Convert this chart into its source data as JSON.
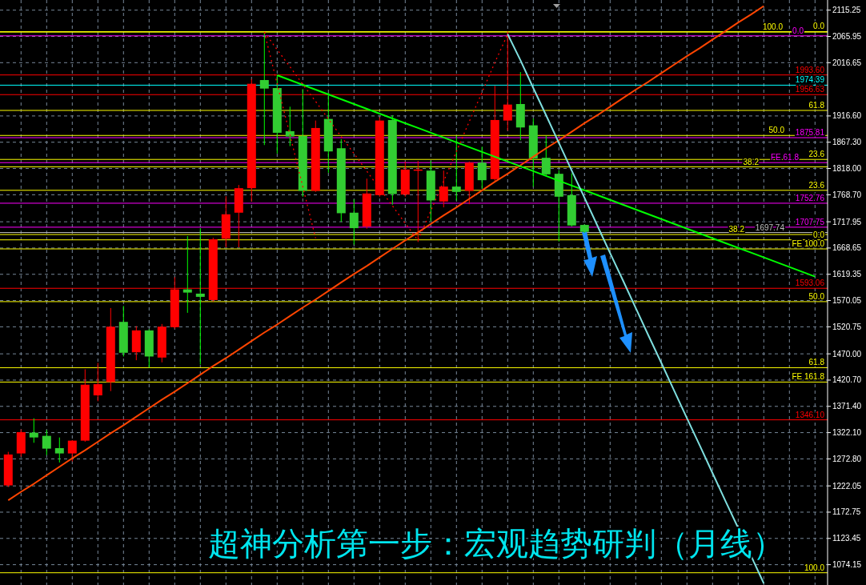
{
  "chart_data": {
    "type": "candlestick",
    "title": "超神分析第一步：宏观趋势研判（月线）",
    "categories": [
      null,
      null,
      null,
      null,
      null,
      null,
      null,
      null,
      null,
      null,
      null,
      null,
      null,
      null,
      null,
      null,
      null,
      null,
      null,
      null,
      null,
      null,
      null,
      null,
      null,
      null,
      null,
      null,
      null,
      null,
      null,
      null,
      null,
      null,
      null,
      null,
      null,
      null,
      null,
      null,
      null,
      null,
      null,
      null,
      null,
      null,
      null,
      null,
      null,
      null,
      null,
      null,
      null,
      null,
      null,
      null,
      null,
      null,
      null,
      null,
      null,
      null,
      null,
      null
    ],
    "ohlc": [
      [
        1223,
        1286,
        1220,
        1281
      ],
      [
        1283,
        1328,
        1277,
        1323
      ],
      [
        1322,
        1349,
        1303,
        1313
      ],
      [
        1316,
        1327,
        1280,
        1292
      ],
      [
        1293,
        1313,
        1266,
        1283
      ],
      [
        1283,
        1308,
        1268,
        1307
      ],
      [
        1307,
        1441,
        1305,
        1412
      ],
      [
        1392,
        1453,
        1381,
        1413
      ],
      [
        1417,
        1556,
        1400,
        1521
      ],
      [
        1530,
        1560,
        1465,
        1472
      ],
      [
        1473,
        1522,
        1458,
        1514
      ],
      [
        1514,
        1516,
        1444,
        1465
      ],
      [
        1463,
        1526,
        1454,
        1521
      ],
      [
        1520,
        1614,
        1517,
        1591
      ],
      [
        1591,
        1691,
        1547,
        1585
      ],
      [
        1583,
        1706,
        1450,
        1577
      ],
      [
        1571,
        1688,
        1568,
        1685
      ],
      [
        1686,
        1766,
        1670,
        1732
      ],
      [
        1735,
        1787,
        1670,
        1781
      ],
      [
        1781,
        1986,
        1756,
        1977
      ],
      [
        1984,
        2074,
        1862,
        1968
      ],
      [
        1969,
        1993,
        1846,
        1885
      ],
      [
        1888,
        1934,
        1860,
        1878
      ],
      [
        1879,
        1967,
        1765,
        1776
      ],
      [
        1776,
        1908,
        1774,
        1894
      ],
      [
        1911,
        1960,
        1810,
        1850
      ],
      [
        1856,
        1873,
        1718,
        1734
      ],
      [
        1735,
        1760,
        1675,
        1706
      ],
      [
        1709,
        1799,
        1705,
        1771
      ],
      [
        1768,
        1914,
        1765,
        1908
      ],
      [
        1909,
        1918,
        1750,
        1770
      ],
      [
        1769,
        1831,
        1765,
        1816
      ],
      [
        1814,
        1832,
        1680,
        1816
      ],
      [
        1814,
        1832,
        1719,
        1758
      ],
      [
        1756,
        1814,
        1745,
        1784
      ],
      [
        1784,
        1879,
        1758,
        1774
      ],
      [
        1776,
        1831,
        1751,
        1829
      ],
      [
        1829,
        1859,
        1780,
        1796
      ],
      [
        1798,
        1973,
        1795,
        1909
      ],
      [
        1908,
        2075,
        1889,
        1938
      ],
      [
        1939,
        1999,
        1871,
        1895
      ],
      [
        1899,
        1912,
        1784,
        1837
      ],
      [
        1838,
        1879,
        1804,
        1807
      ],
      [
        1808,
        1815,
        1681,
        1765
      ],
      [
        1768,
        1809,
        1709,
        1711
      ],
      [
        1712,
        1713,
        1697,
        1699
      ],
      null,
      null,
      null,
      null,
      null,
      null,
      null,
      null,
      null,
      null,
      null,
      null,
      null,
      null,
      null,
      null,
      null,
      null
    ],
    "series": [
      {
        "type": "line",
        "color": "#ff4500",
        "values": [
          1195,
          1211,
          1226,
          1242,
          1258,
          1274,
          1289,
          1305,
          1321,
          1336,
          1352,
          1368,
          1384,
          1399,
          1415,
          1431,
          1447,
          1462,
          1478,
          1494,
          1510,
          1525,
          1541,
          1557,
          1572,
          1588,
          1604,
          1620,
          1635,
          1651,
          1667,
          1683,
          1698,
          1714,
          1730,
          1745,
          1761,
          1777,
          1793,
          1808,
          1824,
          1840,
          1856,
          1871,
          1887,
          1903,
          1918,
          1934,
          1950,
          1966,
          1981,
          1997,
          2013,
          2029,
          2044,
          2060,
          2076,
          2092,
          2107,
          2123,
          null,
          null,
          null,
          null
        ]
      },
      {
        "type": "line",
        "color": "#00ff00",
        "values": [
          null,
          null,
          null,
          null,
          null,
          null,
          null,
          null,
          null,
          null,
          null,
          null,
          null,
          null,
          null,
          null,
          null,
          null,
          null,
          null,
          null,
          1993,
          1984,
          1975,
          1966,
          1957,
          1948,
          1939,
          1930,
          1921,
          1912,
          1903,
          1894,
          1885,
          1876,
          1867,
          1858,
          1849,
          1840,
          1831,
          1822,
          1813,
          1804,
          1795,
          1786,
          1777,
          1768,
          1759,
          1750,
          1741,
          1732,
          1723,
          1714,
          1705,
          1696,
          1687,
          1678,
          1669,
          1660,
          1651,
          1642,
          1633,
          1624,
          1615
        ]
      },
      {
        "type": "line",
        "color": "#7fdfdf",
        "values": [
          null,
          null,
          null,
          null,
          null,
          null,
          null,
          null,
          null,
          null,
          null,
          null,
          null,
          null,
          null,
          null,
          null,
          null,
          null,
          null,
          null,
          null,
          null,
          null,
          null,
          null,
          null,
          null,
          null,
          null,
          null,
          null,
          null,
          null,
          null,
          null,
          null,
          null,
          null,
          2070,
          2021,
          1969,
          1918,
          1866,
          1814,
          1763,
          1711,
          1659,
          1608,
          1556,
          1504,
          1453,
          1401,
          1349,
          1298,
          1246,
          1194,
          1143,
          1091,
          1039,
          null,
          null,
          null,
          null
        ]
      },
      {
        "type": "line",
        "color": "#ff0000",
        "line_style": "dotted",
        "values": [
          null,
          null,
          null,
          null,
          null,
          null,
          null,
          null,
          null,
          null,
          null,
          null,
          null,
          null,
          null,
          null,
          null,
          null,
          null,
          null,
          2074,
          1977,
          1881,
          1784,
          1687,
          null,
          null,
          null,
          null,
          null,
          null,
          null,
          null,
          null,
          null,
          null,
          null,
          null,
          null,
          null,
          null,
          null,
          null,
          null,
          null,
          null,
          null,
          null,
          null,
          null,
          null,
          null,
          null,
          null,
          null,
          null,
          null,
          null,
          null,
          null,
          null,
          null,
          null,
          null
        ]
      },
      {
        "type": "line",
        "color": "#ff0000",
        "line_style": "dotted",
        "values": [
          null,
          null,
          null,
          null,
          null,
          null,
          null,
          null,
          null,
          null,
          null,
          null,
          null,
          null,
          null,
          null,
          null,
          null,
          null,
          null,
          2074,
          2041,
          2009,
          1976,
          1944,
          1911,
          1878,
          1846,
          1813,
          1780,
          1748,
          1715,
          1683,
          1739,
          1794,
          1850,
          1906,
          1961,
          2017,
          2070,
          null,
          null,
          null,
          null,
          null,
          null,
          null,
          null,
          null,
          null,
          null,
          null,
          null,
          null,
          null,
          null,
          null,
          null,
          null,
          null,
          null,
          null,
          null,
          null
        ]
      }
    ],
    "ylim": [
      1036,
      2134.3
    ],
    "yticks": [
      {
        "value": 2115.25,
        "label": "2115.25"
      },
      {
        "value": 2065.95,
        "label": "2065.95"
      },
      {
        "value": 2016.65,
        "label": "2016.65"
      },
      {
        "value": 1916.6,
        "label": "1916.60"
      },
      {
        "value": 1867.3,
        "label": "1867.30"
      },
      {
        "value": 1818,
        "label": "1818.00"
      },
      {
        "value": 1768.7,
        "label": "1768.70"
      },
      {
        "value": 1717.95,
        "label": "1717.95"
      },
      {
        "value": 1668.65,
        "label": "1668.65"
      },
      {
        "value": 1619.35,
        "label": "1619.35"
      },
      {
        "value": 1570.05,
        "label": "1570.05"
      },
      {
        "value": 1520.75,
        "label": "1520.75"
      },
      {
        "value": 1470,
        "label": "1470.00"
      },
      {
        "value": 1420.7,
        "label": "1420.70"
      },
      {
        "value": 1371.4,
        "label": "1371.40"
      },
      {
        "value": 1322.1,
        "label": "1322.10"
      },
      {
        "value": 1272.8,
        "label": "1272.80"
      },
      {
        "value": 1222.05,
        "label": "1222.05"
      },
      {
        "value": 1172.75,
        "label": "1172.75"
      },
      {
        "value": 1123.45,
        "label": "1123.45"
      },
      {
        "value": 1074.15,
        "label": "1074.15"
      }
    ],
    "tick_labels": "y",
    "grid": true,
    "ref_lines": [
      {
        "axis": "y",
        "value": 2075,
        "color": "#ffff00"
      },
      {
        "axis": "y",
        "value": 2067,
        "color": "#ff00ff"
      },
      {
        "axis": "y",
        "value": 2074,
        "color": "#ffff00"
      },
      {
        "axis": "y",
        "value": 1993.6,
        "label": "1993.60",
        "color": "#ff0000"
      },
      {
        "axis": "y",
        "value": 1974.39,
        "label": "1974.39",
        "color": "#00ffff"
      },
      {
        "axis": "y",
        "value": 1956.63,
        "label": "1956.63",
        "color": "#ff0000"
      },
      {
        "axis": "y",
        "value": 1927,
        "color": "#ffff00"
      },
      {
        "axis": "y",
        "value": 1880,
        "color": "#ffff00"
      },
      {
        "axis": "y",
        "value": 1875.81,
        "label": "1875.81",
        "color": "#ff00ff"
      },
      {
        "axis": "y",
        "value": 1835,
        "color": "#ffff00"
      },
      {
        "axis": "y",
        "value": 1829,
        "color": "#ff00ff"
      },
      {
        "axis": "y",
        "value": 1821,
        "color": "#ffff00"
      },
      {
        "axis": "y",
        "value": 1777,
        "color": "#ffff00"
      },
      {
        "axis": "y",
        "value": 1752.76,
        "label": "1752.76",
        "color": "#ff00ff"
      },
      {
        "axis": "y",
        "value": 1707.75,
        "label": "1707.75",
        "color": "#ff00ff"
      },
      {
        "axis": "y",
        "value": 1697.74,
        "label": "1697.74",
        "color": "#c0c0c0"
      },
      {
        "axis": "y",
        "value": 1694,
        "color": "#ffff00"
      },
      {
        "axis": "y",
        "value": 1684,
        "color": "#ffff00"
      },
      {
        "axis": "y",
        "value": 1667,
        "color": "#ffff00"
      },
      {
        "axis": "y",
        "value": 1593.06,
        "label": "1593.06",
        "color": "#ff0000"
      },
      {
        "axis": "y",
        "value": 1568,
        "color": "#ffff00"
      },
      {
        "axis": "y",
        "value": 1444,
        "color": "#ffff00"
      },
      {
        "axis": "y",
        "value": 1417,
        "color": "#ffff00"
      },
      {
        "axis": "y",
        "value": 1346.1,
        "label": "1346.10",
        "color": "#ff0000"
      },
      {
        "axis": "y",
        "value": 1059,
        "color": "#ffff00"
      }
    ],
    "annotations": [
      {
        "text": "0.0",
        "y": 2075
      },
      {
        "text": "0.0",
        "y": 2067
      },
      {
        "text": "100.0",
        "y": 2074
      },
      {
        "text": "61.8",
        "y": 1927
      },
      {
        "text": "50.0",
        "y": 1880
      },
      {
        "text": "23.6",
        "y": 1835
      },
      {
        "text": "FE 61.8",
        "y": 1829
      },
      {
        "text": "38.2",
        "y": 1821
      },
      {
        "text": "23.6",
        "y": 1777
      },
      {
        "text": "38.2",
        "y": 1694
      },
      {
        "text": "0.0",
        "y": 1684
      },
      {
        "text": "FE 100.0",
        "y": 1667
      },
      {
        "text": "50.0",
        "y": 1568
      },
      {
        "text": "61.8",
        "y": 1444
      },
      {
        "text": "FE 161.8",
        "y": 1417
      },
      {
        "text": "100.0",
        "y": 1059
      }
    ]
  }
}
